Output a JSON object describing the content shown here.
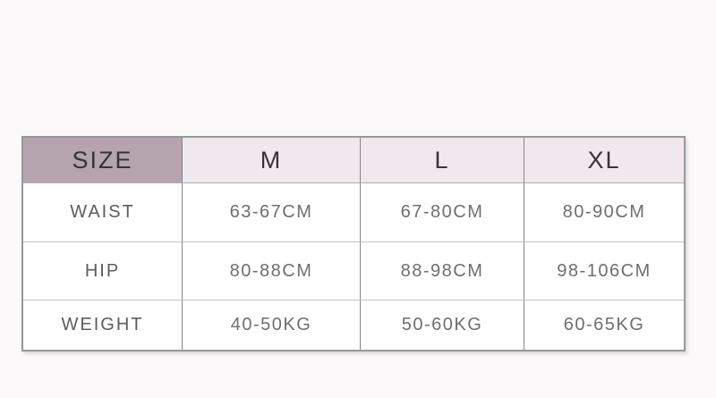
{
  "table": {
    "header": {
      "size_label": "SIZE",
      "columns": [
        "M",
        "L",
        "XL"
      ]
    },
    "rows": [
      {
        "label": "WAIST",
        "values": [
          "63-67CM",
          "67-80CM",
          "80-90CM"
        ]
      },
      {
        "label": "HIP",
        "values": [
          "80-88CM",
          "88-98CM",
          "98-106CM"
        ]
      },
      {
        "label": "WEIGHT",
        "values": [
          "40-50KG",
          "50-60KG",
          "60-65KG"
        ]
      }
    ]
  },
  "chart_data": {
    "type": "table",
    "columns": [
      "SIZE",
      "M",
      "L",
      "XL"
    ],
    "rows": [
      [
        "WAIST",
        "63-67CM",
        "67-80CM",
        "80-90CM"
      ],
      [
        "HIP",
        "80-88CM",
        "88-98CM",
        "98-106CM"
      ],
      [
        "WEIGHT",
        "40-50KG",
        "50-60KG",
        "60-65KG"
      ]
    ]
  },
  "colors": {
    "page_background": "#fbf9f9",
    "size_header_bg": "#b5a4ae",
    "column_header_bg": "#f0e8ec",
    "header_text": "#38323c",
    "label_text": "#5d5c61",
    "value_text": "#6f6e72",
    "border_outer": "#979797",
    "border_vertical": "#868686",
    "border_horizontal": "#c3c3c3"
  }
}
